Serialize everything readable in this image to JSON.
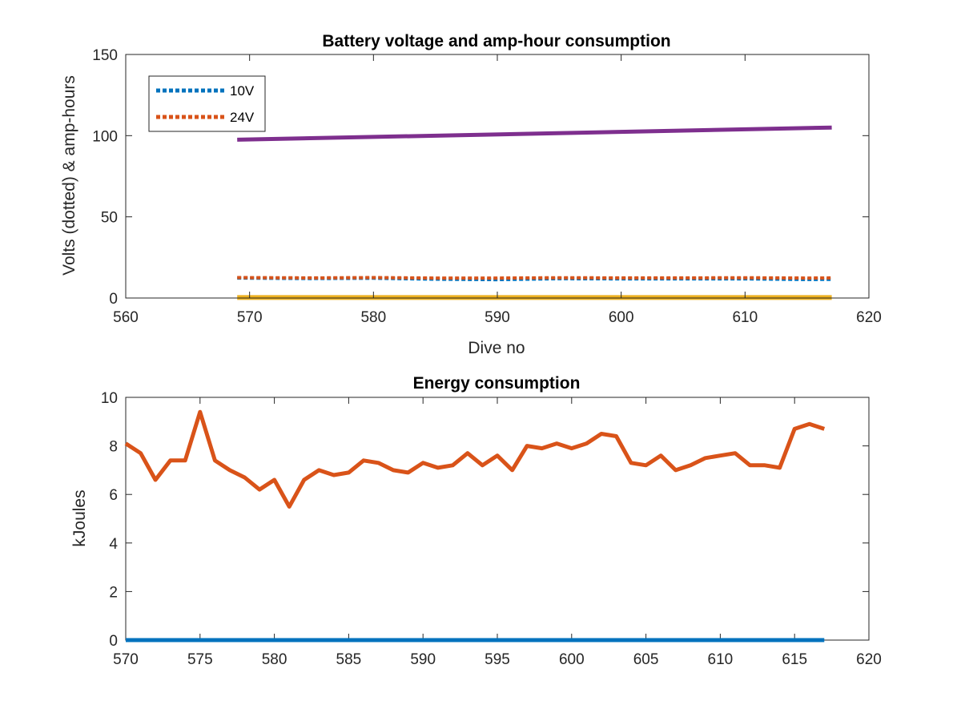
{
  "chart_data": [
    {
      "type": "line",
      "title": "Battery voltage and amp-hour consumption",
      "xlabel": "Dive no",
      "ylabel": "Volts (dotted) & amp-hours",
      "xlim": [
        560,
        620
      ],
      "ylim": [
        0,
        150
      ],
      "xticks": [
        560,
        570,
        580,
        590,
        600,
        610,
        620
      ],
      "yticks": [
        0,
        50,
        100,
        150
      ],
      "grid": false,
      "legend": {
        "placement": "top-left",
        "entries": [
          "10V",
          "24V"
        ]
      },
      "series": [
        {
          "name": "10V",
          "style": "dotted",
          "color": "#0072BD",
          "x": [
            569,
            575,
            580,
            585,
            590,
            595,
            600,
            605,
            610,
            615,
            617
          ],
          "y": [
            12.3,
            12.0,
            12.2,
            11.6,
            11.3,
            11.9,
            11.8,
            11.8,
            11.8,
            11.4,
            11.5
          ]
        },
        {
          "name": "24V",
          "style": "dotted",
          "color": "#D95319",
          "x": [
            569,
            575,
            580,
            585,
            590,
            595,
            600,
            605,
            610,
            615,
            617
          ],
          "y": [
            12.6,
            12.4,
            12.6,
            12.3,
            12.3,
            12.5,
            12.4,
            12.4,
            12.5,
            12.3,
            12.4
          ]
        },
        {
          "style": "solid",
          "color": "#EDB120",
          "x": [
            569,
            617
          ],
          "y": [
            0.3,
            0.3
          ]
        },
        {
          "style": "solid",
          "color": "#7E2F8E",
          "x": [
            569,
            617
          ],
          "y": [
            97.5,
            105
          ]
        }
      ]
    },
    {
      "type": "line",
      "title": "Energy consumption",
      "xlabel": "",
      "ylabel": "kJoules",
      "xlim": [
        570,
        620
      ],
      "ylim": [
        0,
        10
      ],
      "xticks": [
        570,
        575,
        580,
        585,
        590,
        595,
        600,
        605,
        610,
        615,
        620
      ],
      "yticks": [
        0,
        2,
        4,
        6,
        8,
        10
      ],
      "grid": false,
      "series": [
        {
          "style": "solid",
          "color": "#0072BD",
          "x": [
            570,
            617
          ],
          "y": [
            0,
            0
          ]
        },
        {
          "style": "solid",
          "color": "#D95319",
          "x": [
            570,
            571,
            572,
            573,
            574,
            575,
            576,
            577,
            578,
            579,
            580,
            581,
            582,
            583,
            584,
            585,
            586,
            587,
            588,
            589,
            590,
            591,
            592,
            593,
            594,
            595,
            596,
            597,
            598,
            599,
            600,
            601,
            602,
            603,
            604,
            605,
            606,
            607,
            608,
            609,
            610,
            611,
            612,
            613,
            614,
            615,
            616,
            617
          ],
          "y": [
            8.1,
            7.7,
            6.6,
            7.4,
            7.4,
            9.4,
            7.4,
            7.0,
            6.7,
            6.2,
            6.6,
            5.5,
            6.6,
            7.0,
            6.8,
            6.9,
            7.4,
            7.3,
            7.0,
            6.9,
            7.3,
            7.1,
            7.2,
            7.7,
            7.2,
            7.6,
            7.0,
            8.0,
            7.9,
            8.1,
            7.9,
            8.1,
            8.5,
            8.4,
            7.3,
            7.2,
            7.6,
            7.0,
            7.2,
            7.5,
            7.6,
            7.7,
            7.2,
            7.2,
            7.1,
            8.7,
            8.9,
            8.7
          ]
        }
      ]
    }
  ]
}
